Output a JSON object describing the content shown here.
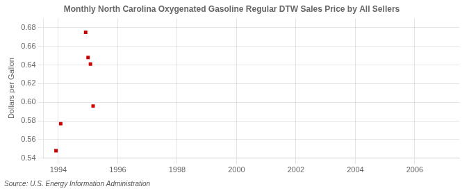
{
  "chart_data": {
    "type": "scatter",
    "title": "Monthly North Carolina Oxygenated Gasoline Regular DTW Sales Price by All Sellers",
    "ylabel": "Dollars per Gallon",
    "annotation": "Source: U.S. Energy Information Administration",
    "x": [
      1993.92,
      1994.08,
      1994.92,
      1995.0,
      1995.08,
      1995.17
    ],
    "values": [
      0.548,
      0.577,
      0.675,
      0.648,
      0.641,
      0.596
    ],
    "color": "#cc0000",
    "marker": "square",
    "xlim": [
      1993.5,
      2007.5
    ],
    "ylim": [
      0.54,
      0.69
    ],
    "xticks": [
      1994,
      1996,
      1998,
      2000,
      2002,
      2004,
      2006
    ],
    "yticks": [
      0.54,
      0.56,
      0.58,
      {
        "value": 0.6,
        "label": "0.60"
      },
      0.62,
      0.64,
      0.66,
      0.68
    ],
    "grid": true
  }
}
